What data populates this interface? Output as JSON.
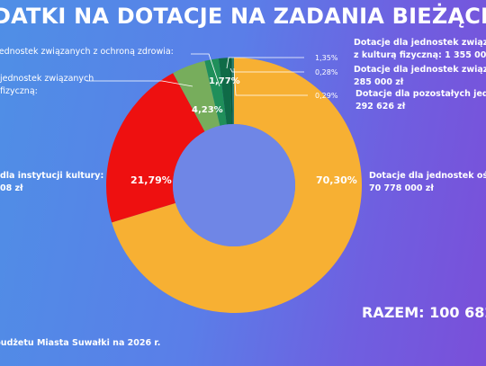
{
  "title": "DATKI NA DOTACJE NA ZADANIA BIEŻĄCE",
  "labels": {
    "zdrowie": "Jednostek związanych z ochroną zdrowia:",
    "fizyczna_l1": "jednostek związanych",
    "fizyczna_l2": "fizyczną:",
    "kultura_l1": "dla instytucji kultury:",
    "kultura_l2": "08 zł",
    "kf_l1": "Dotacje dla jednostek związa",
    "kf_l2": "z kulturą fizyczną: 1 355 000 zł",
    "z_l1": "Dotacje dla jednostek związa",
    "z_l2": "285 000 zł",
    "poz_l1": "Dotacje dla pozostałych jedn",
    "poz_l2": "292 626 zł",
    "ost_l1": "Dotacje dla jednostek oś",
    "ost_l2": "70 778 000 zł"
  },
  "total": "RAZEM: 100 682",
  "source": "budżetu Miasta Suwałki na 2026 r.",
  "colors": {
    "orange": "#f7b033",
    "red": "#ee1010",
    "light_green": "#77ad5c",
    "green": "#1f8f5a",
    "dark_green": "#0f6b47",
    "darkest_green": "#0a5a3a",
    "teal": "#2b7d6e"
  },
  "chart_data": {
    "type": "pie",
    "slices": [
      {
        "label": "70,30%",
        "value": 70.3,
        "color": "#f7b033"
      },
      {
        "label": "21,79%",
        "value": 21.79,
        "color": "#ee1010"
      },
      {
        "label": "4,23%",
        "value": 4.23,
        "color": "#77ad5c"
      },
      {
        "label": "1,77%",
        "value": 1.77,
        "color": "#1f8f5a"
      },
      {
        "label": "1,35%",
        "value": 1.35,
        "color": "#0f6b47"
      },
      {
        "label": "0,28%",
        "value": 0.28,
        "color": "#0a5a3a"
      },
      {
        "label": "0,29%",
        "value": 0.29,
        "color": "#2b7d6e"
      }
    ]
  }
}
